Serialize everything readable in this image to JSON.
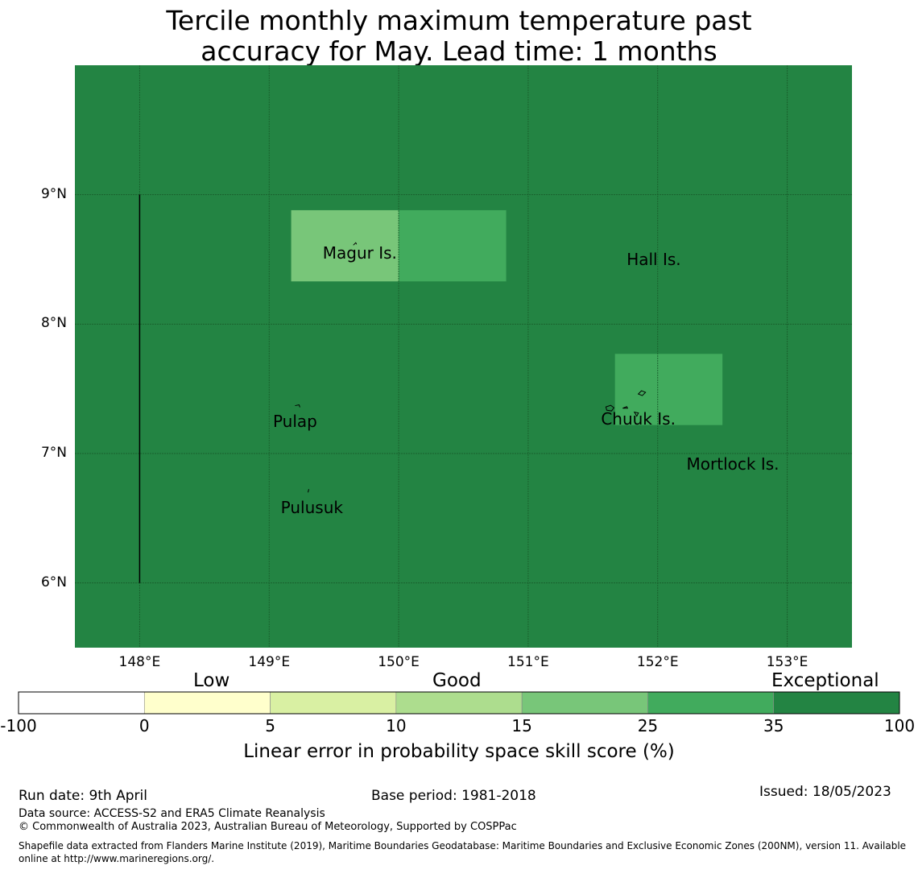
{
  "title": {
    "line1": "Tercile monthly maximum temperature past",
    "line2": "accuracy for May. Lead time: 1 months"
  },
  "map": {
    "lon_range": [
      147.5,
      153.5
    ],
    "lat_range": [
      5.5,
      10.0
    ],
    "lon_ticks": [
      148,
      149,
      150,
      151,
      152,
      153
    ],
    "lat_ticks": [
      6,
      7,
      8,
      9
    ],
    "lon_tick_labels": [
      "148°E",
      "149°E",
      "150°E",
      "151°E",
      "152°E",
      "153°E"
    ],
    "lat_tick_labels": [
      "6°N",
      "7°N",
      "8°N",
      "9°N"
    ],
    "background_category": "35 to 100",
    "cells": [
      {
        "lon_min": 149.17,
        "lon_max": 150.0,
        "lat_min": 8.33,
        "lat_max": 8.88,
        "category": "15 to 25"
      },
      {
        "lon_min": 150.0,
        "lon_max": 150.83,
        "lat_min": 8.33,
        "lat_max": 8.88,
        "category": "25 to 35"
      },
      {
        "lon_min": 151.67,
        "lon_max": 152.5,
        "lat_min": 7.22,
        "lat_max": 7.77,
        "category": "25 to 35"
      }
    ],
    "boundary_line": {
      "lon": 148.0,
      "lat_from": 6.0,
      "lat_to": 9.0
    },
    "places": [
      {
        "name": "Magur Is.",
        "lon": 149.7,
        "lat": 8.55
      },
      {
        "name": "Hall Is.",
        "lon": 151.97,
        "lat": 8.5
      },
      {
        "name": "Pulap",
        "lon": 149.2,
        "lat": 7.25
      },
      {
        "name": "Chuuk Is.",
        "lon": 151.85,
        "lat": 7.27
      },
      {
        "name": "Mortlock Is.",
        "lon": 152.58,
        "lat": 6.92
      },
      {
        "name": "Pulusuk",
        "lon": 149.33,
        "lat": 6.58
      }
    ]
  },
  "colorbar": {
    "category_labels": [
      "Low",
      "Good",
      "Exceptional"
    ],
    "tick_labels": [
      "-100",
      "0",
      "5",
      "10",
      "15",
      "25",
      "35",
      "100"
    ],
    "colors": [
      "#ffffff",
      "#ffffcc",
      "#d9f0a3",
      "#addd8e",
      "#78c679",
      "#41ab5d",
      "#238443"
    ],
    "label": "Linear error in probability space skill score (%)"
  },
  "footer": {
    "run_date": "Run date: 9th April",
    "base_period": "Base period: 1981-2018",
    "issued": "Issued: 18/05/2023",
    "data_source": "Data source: ACCESS-S2 and ERA5 Climate Reanalysis",
    "copyright": "© Commonwealth of Australia 2023, Australian Bureau of Meteorology, Supported by COSPPac",
    "shapefile": "Shapefile data extracted from Flanders Marine Institute (2019), Maritime Boundaries Geodatabase: Maritime Boundaries and Exclusive Economic Zones (200NM), version 11. Available online at http://www.marineregions.org/."
  }
}
